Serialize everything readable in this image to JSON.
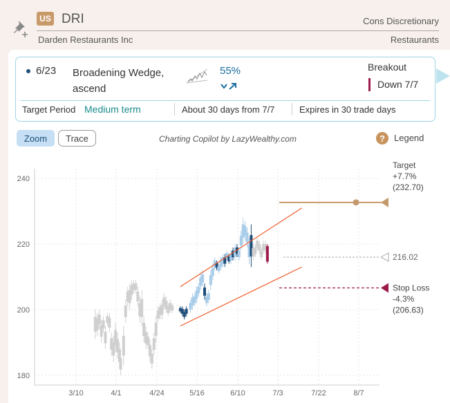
{
  "header": {
    "country_badge": "US",
    "ticker": "DRI",
    "sector": "Cons Discretionary",
    "company": "Darden Restaurants Inc",
    "industry": "Restaurants",
    "pin_icon": "pin-add-icon"
  },
  "pattern_card": {
    "date": "6/23",
    "name": "Broadening Wedge, ascend",
    "probability": "55%",
    "breakout_label": "Breakout",
    "breakout_value": "Down 7/7",
    "target_period_label": "Target Period",
    "target_period_value": "Medium term",
    "about": "About 30 days from 7/7",
    "expires": "Expires in 30 trade days"
  },
  "toolbar": {
    "zoom": "Zoom",
    "trace": "Trace",
    "credit": "Charting Copilot by LazyWealthy.com",
    "help_icon": "?",
    "legend": "Legend"
  },
  "colors": {
    "target": "#c49a6c",
    "stop": "#9b1b4b",
    "wedge": "#f05a28",
    "candle_light": "#cfcfcf",
    "candle_pattern_light": "#a9cde9",
    "candle_pattern_dark": "#1f4e79"
  },
  "chart_data": {
    "type": "candlestick",
    "y_ticks": [
      "240",
      "220",
      "200",
      "180"
    ],
    "x_ticks": [
      "3/10",
      "4/1",
      "4/24",
      "5/16",
      "6/10",
      "7/3",
      "7/22",
      "8/7"
    ],
    "ylim": [
      177,
      243
    ],
    "grid": true,
    "target": {
      "label": "Target",
      "pct": "+7.7%",
      "price": "(232.70)",
      "value": 232.7
    },
    "current": {
      "label": "216.02",
      "value": 216.02
    },
    "stop": {
      "label": "Stop Loss",
      "pct": "-4.3%",
      "price": "(206.63)",
      "value": 206.63
    },
    "wedge_upper": [
      [
        0.2,
        207
      ],
      [
        6.2,
        231
      ]
    ],
    "wedge_lower": [
      [
        0.2,
        195
      ],
      [
        6.2,
        213
      ]
    ],
    "candles": [
      [
        -4.0,
        191,
        200
      ],
      [
        -3.9,
        192,
        199
      ],
      [
        -3.8,
        194,
        200
      ],
      [
        -3.7,
        190,
        197
      ],
      [
        -3.6,
        193,
        198
      ],
      [
        -3.5,
        188,
        195
      ],
      [
        -3.4,
        195,
        199
      ],
      [
        -3.3,
        193,
        199
      ],
      [
        -3.2,
        186,
        193
      ],
      [
        -3.1,
        184,
        192
      ],
      [
        -3.0,
        187,
        196
      ],
      [
        -2.9,
        185,
        193
      ],
      [
        -2.8,
        182,
        190
      ],
      [
        -2.75,
        180,
        187
      ],
      [
        -2.6,
        183,
        195
      ],
      [
        -2.5,
        196,
        203
      ],
      [
        -2.4,
        201,
        207
      ],
      [
        -2.3,
        200,
        208
      ],
      [
        -2.2,
        203,
        209
      ],
      [
        -2.1,
        205,
        209
      ],
      [
        -2.0,
        205,
        209
      ],
      [
        -1.9,
        201,
        207
      ],
      [
        -1.8,
        196,
        204
      ],
      [
        -1.7,
        195,
        206
      ],
      [
        -1.6,
        190,
        198
      ],
      [
        -1.5,
        188,
        195
      ],
      [
        -1.4,
        188,
        193
      ],
      [
        -1.3,
        184,
        191
      ],
      [
        -1.2,
        182,
        188
      ],
      [
        -1.1,
        186,
        193
      ],
      [
        -1.0,
        190,
        198
      ],
      [
        -0.9,
        196,
        201
      ],
      [
        -0.8,
        197,
        202
      ],
      [
        -0.7,
        197,
        203
      ],
      [
        -0.6,
        200,
        205
      ],
      [
        -0.5,
        199,
        204
      ],
      [
        -0.4,
        198,
        202
      ],
      [
        -0.3,
        199,
        203
      ],
      [
        -0.2,
        199,
        202
      ],
      [
        0.2,
        199,
        201,
        1
      ],
      [
        0.3,
        198,
        201,
        1
      ],
      [
        0.4,
        197,
        200,
        1
      ],
      [
        0.5,
        198,
        201,
        1
      ],
      [
        0.7,
        199,
        203,
        2
      ],
      [
        0.8,
        200,
        205,
        2
      ],
      [
        0.9,
        201,
        205,
        2
      ],
      [
        1.0,
        202,
        207,
        2
      ],
      [
        1.1,
        204,
        208,
        2
      ],
      [
        1.2,
        206,
        211,
        2
      ],
      [
        1.3,
        207,
        212,
        2
      ],
      [
        1.4,
        203,
        208,
        1
      ],
      [
        1.5,
        201,
        205,
        2
      ],
      [
        1.6,
        202,
        206,
        2
      ],
      [
        1.7,
        206,
        212,
        2
      ],
      [
        1.8,
        209,
        214,
        2
      ],
      [
        1.9,
        212,
        216,
        2
      ],
      [
        2.0,
        212,
        215,
        1
      ],
      [
        2.1,
        211,
        214,
        2
      ],
      [
        2.2,
        212,
        216,
        2
      ],
      [
        2.3,
        213,
        217,
        2
      ],
      [
        2.4,
        213,
        217,
        1
      ],
      [
        2.5,
        215,
        218,
        2
      ],
      [
        2.6,
        214,
        217,
        1
      ],
      [
        2.7,
        214,
        218,
        2
      ],
      [
        2.8,
        215,
        219,
        1
      ],
      [
        2.9,
        215,
        220,
        2
      ],
      [
        3.0,
        216,
        220,
        1
      ],
      [
        3.1,
        215,
        219,
        2
      ],
      [
        3.2,
        218,
        224,
        2
      ],
      [
        3.3,
        220,
        228,
        2
      ],
      [
        3.4,
        221,
        227,
        2
      ],
      [
        3.5,
        219,
        225,
        2
      ],
      [
        3.6,
        214,
        222,
        2
      ],
      [
        3.7,
        213,
        226,
        1
      ],
      [
        3.8,
        215,
        220,
        0
      ],
      [
        3.9,
        216,
        220,
        0
      ],
      [
        4.0,
        218,
        222,
        0
      ],
      [
        4.1,
        217,
        221,
        0
      ],
      [
        4.2,
        215,
        219,
        0
      ],
      [
        4.3,
        217,
        221,
        0
      ],
      [
        4.4,
        217,
        221,
        0
      ]
    ],
    "breakout_candle": [
      4.5,
      214,
      220
    ]
  }
}
